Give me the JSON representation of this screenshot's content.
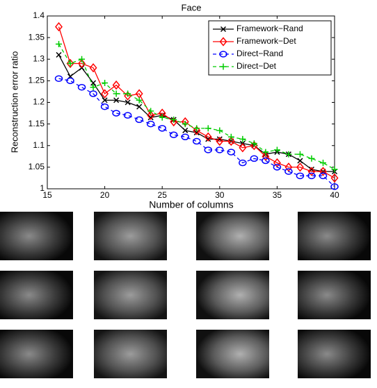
{
  "chart_data": {
    "type": "line",
    "title": "Face",
    "x_label": "Number of columns",
    "y_label": "Reconstruction error ratio",
    "x": [
      16,
      17,
      18,
      19,
      20,
      21,
      22,
      23,
      24,
      25,
      26,
      27,
      28,
      29,
      30,
      31,
      32,
      33,
      34,
      35,
      36,
      37,
      38,
      39,
      40
    ],
    "xlim": [
      15,
      40
    ],
    "xticks": [
      15,
      20,
      25,
      30,
      35,
      40
    ],
    "ylim": [
      1,
      1.4
    ],
    "yticks": [
      1,
      1.05,
      1.1,
      1.15,
      1.2,
      1.25,
      1.3,
      1.35,
      1.4
    ],
    "legend": "upper right",
    "series": [
      {
        "name": "Framework−Rand",
        "color": "#000000",
        "marker": "x",
        "dashed": false,
        "values": [
          1.31,
          1.26,
          1.28,
          1.245,
          1.205,
          1.205,
          1.2,
          1.19,
          1.165,
          1.17,
          1.16,
          1.135,
          1.13,
          1.115,
          1.115,
          1.11,
          1.105,
          1.1,
          1.08,
          1.085,
          1.08,
          1.065,
          1.045,
          1.04,
          1.04
        ]
      },
      {
        "name": "Framework−Det",
        "color": "#ff0000",
        "marker": "diamond",
        "dashed": false,
        "values": [
          1.375,
          1.29,
          1.29,
          1.28,
          1.22,
          1.24,
          1.215,
          1.22,
          1.17,
          1.175,
          1.155,
          1.155,
          1.135,
          1.12,
          1.11,
          1.11,
          1.095,
          1.1,
          1.075,
          1.06,
          1.05,
          1.05,
          1.04,
          1.04,
          1.025
        ]
      },
      {
        "name": "Direct−Rand",
        "color": "#0000ff",
        "marker": "circle",
        "dashed": true,
        "values": [
          1.255,
          1.25,
          1.235,
          1.22,
          1.19,
          1.175,
          1.17,
          1.16,
          1.15,
          1.14,
          1.125,
          1.12,
          1.11,
          1.09,
          1.09,
          1.085,
          1.06,
          1.07,
          1.065,
          1.05,
          1.04,
          1.03,
          1.03,
          1.03,
          1.005
        ]
      },
      {
        "name": "Direct−Det",
        "color": "#00cc00",
        "marker": "plus",
        "dashed": true,
        "values": [
          1.335,
          1.29,
          1.3,
          1.235,
          1.245,
          1.22,
          1.22,
          1.205,
          1.18,
          1.165,
          1.16,
          1.15,
          1.14,
          1.14,
          1.135,
          1.12,
          1.115,
          1.105,
          1.085,
          1.09,
          1.08,
          1.08,
          1.07,
          1.06,
          1.045
        ]
      }
    ]
  }
}
